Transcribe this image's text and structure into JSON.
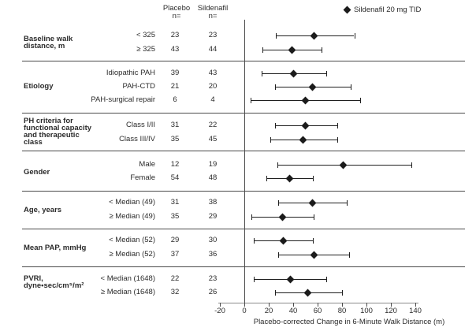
{
  "figure": {
    "columns": {
      "placebo": {
        "line1": "Placebo",
        "line2": "n="
      },
      "sildenafil": {
        "line1": "Sildenafil",
        "line2": "n="
      }
    },
    "legend": {
      "marker": "diamond-icon",
      "label": "Sildenafil 20 mg TID"
    }
  },
  "chart_data": {
    "type": "scatter",
    "subtype": "forest-plot",
    "title": "",
    "xlabel": "Placebo-corrected Change in 6-Minute Walk Distance (m)",
    "xlim": [
      -20,
      140
    ],
    "xticks": [
      -20,
      0,
      20,
      40,
      60,
      80,
      100,
      120,
      140
    ],
    "grid": false,
    "legend_entries": [
      "Sildenafil 20 mg TID"
    ],
    "legend_position": "top-right",
    "column_headers": [
      "Placebo n=",
      "Sildenafil n="
    ],
    "groups": [
      {
        "label": "Baseline walk distance, m",
        "label_lines": [
          "Baseline walk",
          "distance, m"
        ],
        "rows": [
          {
            "subgroup": "< 325",
            "placebo_n": 23,
            "sildenafil_n": 23,
            "ci_low": 26,
            "estimate": 57,
            "ci_high": 90
          },
          {
            "subgroup": "≥ 325",
            "placebo_n": 43,
            "sildenafil_n": 44,
            "ci_low": 15,
            "estimate": 39,
            "ci_high": 63
          }
        ]
      },
      {
        "label": "Etiology",
        "label_lines": [
          "Etiology"
        ],
        "rows": [
          {
            "subgroup": "Idiopathic PAH",
            "placebo_n": 39,
            "sildenafil_n": 43,
            "ci_low": 14,
            "estimate": 40,
            "ci_high": 67
          },
          {
            "subgroup": "PAH-CTD",
            "placebo_n": 21,
            "sildenafil_n": 20,
            "ci_low": 25,
            "estimate": 56,
            "ci_high": 87
          },
          {
            "subgroup": "PAH-surgical repair",
            "placebo_n": 6,
            "sildenafil_n": 4,
            "ci_low": 5,
            "estimate": 50,
            "ci_high": 95
          }
        ]
      },
      {
        "label": "PH criteria for functional capacity and therapeutic class",
        "label_lines": [
          "PH criteria for",
          "functional capacity",
          "and therapeutic",
          "class"
        ],
        "rows": [
          {
            "subgroup": "Class I/II",
            "placebo_n": 31,
            "sildenafil_n": 22,
            "ci_low": 25,
            "estimate": 50,
            "ci_high": 76
          },
          {
            "subgroup": "Class III/IV",
            "placebo_n": 35,
            "sildenafil_n": 45,
            "ci_low": 21,
            "estimate": 48,
            "ci_high": 76
          }
        ]
      },
      {
        "label": "Gender",
        "label_lines": [
          "Gender"
        ],
        "rows": [
          {
            "subgroup": "Male",
            "placebo_n": 12,
            "sildenafil_n": 19,
            "ci_low": 27,
            "estimate": 81,
            "ci_high": 137
          },
          {
            "subgroup": "Female",
            "placebo_n": 54,
            "sildenafil_n": 48,
            "ci_low": 18,
            "estimate": 37,
            "ci_high": 56
          }
        ]
      },
      {
        "label": "Age, years",
        "label_lines": [
          "Age, years"
        ],
        "rows": [
          {
            "subgroup": "< Median (49)",
            "placebo_n": 31,
            "sildenafil_n": 38,
            "ci_low": 28,
            "estimate": 56,
            "ci_high": 84
          },
          {
            "subgroup": "≥ Median (49)",
            "placebo_n": 35,
            "sildenafil_n": 29,
            "ci_low": 6,
            "estimate": 31,
            "ci_high": 57
          }
        ]
      },
      {
        "label": "Mean PAP, mmHg",
        "label_lines": [
          "Mean PAP, mmHg"
        ],
        "rows": [
          {
            "subgroup": "< Median (52)",
            "placebo_n": 29,
            "sildenafil_n": 30,
            "ci_low": 8,
            "estimate": 32,
            "ci_high": 56
          },
          {
            "subgroup": "≥ Median (52)",
            "placebo_n": 37,
            "sildenafil_n": 36,
            "ci_low": 28,
            "estimate": 57,
            "ci_high": 86
          }
        ]
      },
      {
        "label": "PVRI, dyne•sec/cm⁵/m²",
        "label_lines": [
          "PVRI,",
          "dyne•sec/cm⁵/m²"
        ],
        "rows": [
          {
            "subgroup": "< Median (1648)",
            "placebo_n": 22,
            "sildenafil_n": 23,
            "ci_low": 8,
            "estimate": 38,
            "ci_high": 67
          },
          {
            "subgroup": "≥ Median (1648)",
            "placebo_n": 32,
            "sildenafil_n": 26,
            "ci_low": 25,
            "estimate": 52,
            "ci_high": 80
          }
        ]
      }
    ]
  }
}
